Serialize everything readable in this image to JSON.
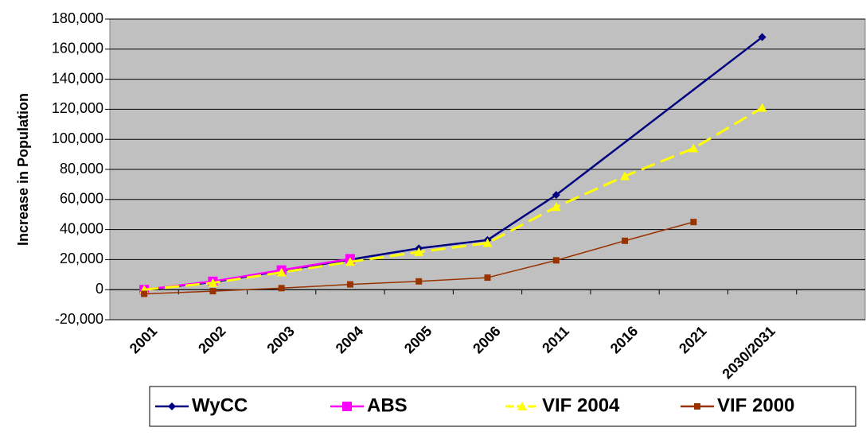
{
  "chart_data": {
    "type": "line",
    "y_label": "Increase in Population",
    "categories": [
      "2001",
      "2002",
      "2003",
      "2004",
      "2005",
      "2006",
      "2011",
      "2016",
      "2021",
      "2030/2031"
    ],
    "series": [
      {
        "name": "WyCC",
        "color": "#000080",
        "marker": "diamond",
        "dash": false,
        "connect_gaps": true,
        "values": [
          0,
          5000,
          12500,
          20000,
          27500,
          33000,
          63000,
          null,
          null,
          168000
        ]
      },
      {
        "name": "ABS",
        "color": "#ff00ff",
        "marker": "square",
        "dash": false,
        "values": [
          0,
          5500,
          13000,
          20500,
          null,
          null,
          null,
          null,
          null,
          null
        ]
      },
      {
        "name": "VIF 2004",
        "color": "#ffff00",
        "marker": "triangle",
        "dash": true,
        "values": [
          0,
          4500,
          11500,
          18500,
          25000,
          31000,
          55000,
          75500,
          94000,
          121000
        ]
      },
      {
        "name": "VIF 2000",
        "color": "#993300",
        "marker": "small-square",
        "dash": false,
        "values": [
          -2800,
          -1000,
          1000,
          3500,
          5500,
          8000,
          19500,
          32500,
          45000,
          null
        ]
      }
    ],
    "ylim": [
      -20000,
      180000
    ],
    "yticks": [
      {
        "value": -20000,
        "label": "-20,000"
      },
      0,
      {
        "value": 20000,
        "label": "20,000"
      },
      {
        "value": 40000,
        "label": "40,000"
      },
      {
        "value": 60000,
        "label": "60,000"
      },
      {
        "value": 80000,
        "label": "80,000"
      },
      {
        "value": 100000,
        "label": "100,000"
      },
      {
        "value": 120000,
        "label": "120,000"
      },
      {
        "value": 140000,
        "label": "140,000"
      },
      {
        "value": 160000,
        "label": "160,000"
      },
      {
        "value": 180000,
        "label": "180,000"
      }
    ],
    "grid": true,
    "legend": "bottom"
  }
}
